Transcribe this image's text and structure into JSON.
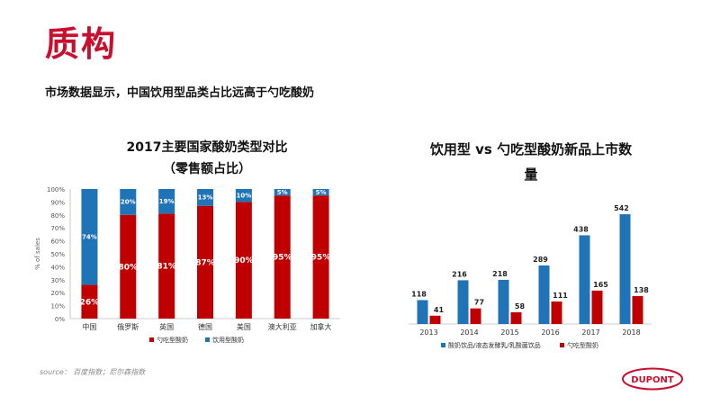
{
  "title": "质构",
  "subtitle": "市场数据显示，中国饮用型品类占比远高于勺吃酸奶",
  "source": "source： 百度指数；尼尔森指数",
  "logo_text": "DUPONT",
  "colors": {
    "red": "#c00000",
    "blue": "#1f73b7",
    "title_red": "#c8102e"
  },
  "chart_data": [
    {
      "type": "bar",
      "stacked": true,
      "title_line1": "2017主要国家酸奶类型对比",
      "title_line2": "（零售额占比）",
      "ylabel": "% of sales",
      "ylim": [
        0,
        100
      ],
      "yticks": [
        0,
        10,
        20,
        30,
        40,
        50,
        60,
        70,
        80,
        90,
        100
      ],
      "ytick_labels": [
        "0%",
        "10%",
        "20%",
        "30%",
        "40%",
        "50%",
        "60%",
        "70%",
        "80%",
        "90%",
        "100%"
      ],
      "categories": [
        "中国",
        "俄罗斯",
        "英国",
        "德国",
        "美国",
        "澳大利亚",
        "加拿大"
      ],
      "series": [
        {
          "name": "勺吃型酸奶",
          "values": [
            26,
            80,
            81,
            87,
            90,
            95,
            95
          ],
          "labels": [
            "26%",
            "80%",
            "81%",
            "87%",
            "90%",
            "95%",
            "95%"
          ]
        },
        {
          "name": "饮用型酸奶",
          "values": [
            74,
            20,
            19,
            13,
            10,
            5,
            5
          ],
          "labels": [
            "74%",
            "20%",
            "19%",
            "13%",
            "10%",
            "5%",
            "5%"
          ]
        }
      ],
      "legend": "bottom"
    },
    {
      "type": "bar",
      "title_line1": "饮用型 vs 勺吃型酸奶新品上市数",
      "title_line2": "量",
      "categories": [
        "2013",
        "2014",
        "2015",
        "2016",
        "2017",
        "2018"
      ],
      "series": [
        {
          "name": "酸奶饮品/液态发酵乳/乳酸菌饮品",
          "values": [
            118,
            216,
            218,
            289,
            438,
            542
          ]
        },
        {
          "name": "勺吃型酸奶",
          "values": [
            41,
            77,
            58,
            111,
            165,
            138
          ]
        }
      ],
      "legend": "bottom"
    }
  ]
}
